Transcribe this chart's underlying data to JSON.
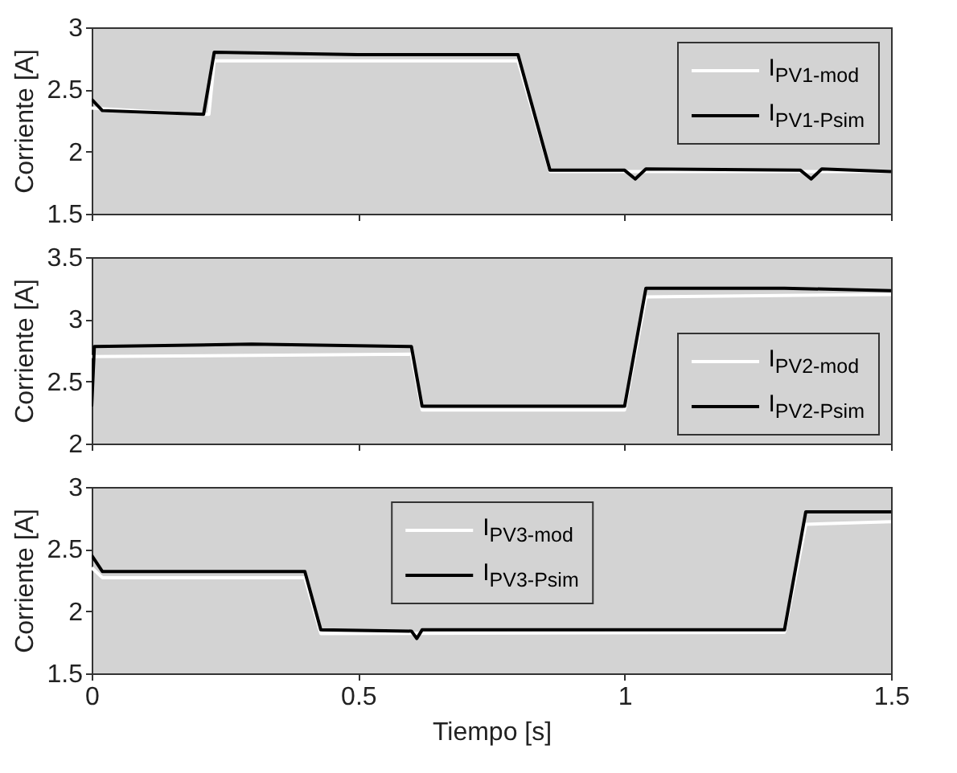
{
  "chart_data": [
    {
      "type": "line",
      "ylabel": "Corriente [A]",
      "xlim": [
        0,
        1.5
      ],
      "xticks": [
        0,
        0.5,
        1,
        1.5
      ],
      "ylim": [
        1.5,
        3
      ],
      "yticks": [
        1.5,
        2,
        2.5,
        3
      ],
      "tick_labels": "y",
      "legend": "top right",
      "series": [
        {
          "name": "I$_{PV1-mod}$",
          "color": "#ffffff",
          "x": [
            0,
            0.2,
            0.22,
            0.23,
            0.8,
            0.86,
            1.5
          ],
          "values": [
            2.35,
            2.3,
            2.3,
            2.73,
            2.73,
            1.84,
            1.84
          ]
        },
        {
          "name": "I$_{PV1-Psim}$",
          "color": "#000000",
          "x": [
            0,
            0.02,
            0.21,
            0.23,
            0.5,
            0.8,
            0.86,
            1.0,
            1.02,
            1.04,
            1.33,
            1.35,
            1.37,
            1.5
          ],
          "values": [
            2.42,
            2.33,
            2.3,
            2.8,
            2.78,
            2.78,
            1.85,
            1.85,
            1.78,
            1.86,
            1.85,
            1.78,
            1.86,
            1.84
          ]
        }
      ]
    },
    {
      "type": "line",
      "ylabel": "Corriente [A]",
      "xlim": [
        0,
        1.5
      ],
      "xticks": [
        0,
        0.5,
        1,
        1.5
      ],
      "ylim": [
        2,
        3.5
      ],
      "yticks": [
        2,
        2.5,
        3,
        3.5
      ],
      "tick_labels": "y",
      "legend": "bottom right",
      "series": [
        {
          "name": "I$_{PV2-mod}$",
          "color": "#ffffff",
          "x": [
            0,
            0.6,
            0.62,
            1.0,
            1.04,
            1.5
          ],
          "values": [
            2.7,
            2.72,
            2.27,
            2.27,
            3.18,
            3.2
          ]
        },
        {
          "name": "I$_{PV2-Psim}$",
          "color": "#000000",
          "x": [
            0,
            0.005,
            0.3,
            0.6,
            0.62,
            1.0,
            1.04,
            1.3,
            1.5
          ],
          "values": [
            2.3,
            2.78,
            2.8,
            2.78,
            2.3,
            2.3,
            3.25,
            3.25,
            3.23
          ]
        }
      ]
    },
    {
      "type": "line",
      "xlabel": "Tiempo [s]",
      "ylabel": "Corriente [A]",
      "xlim": [
        0,
        1.5
      ],
      "xticks": [
        0,
        0.5,
        1,
        1.5
      ],
      "ylim": [
        1.5,
        3
      ],
      "yticks": [
        1.5,
        2,
        2.5,
        3
      ],
      "legend": "top",
      "series": [
        {
          "name": "I$_{PV3-mod}$",
          "color": "#ffffff",
          "x": [
            0,
            0.02,
            0.4,
            0.43,
            1.3,
            1.34,
            1.5
          ],
          "values": [
            2.35,
            2.27,
            2.27,
            1.82,
            1.83,
            2.7,
            2.72
          ]
        },
        {
          "name": "I$_{PV3-Psim}$",
          "color": "#000000",
          "x": [
            0,
            0.02,
            0.4,
            0.43,
            0.6,
            0.61,
            0.62,
            1.3,
            1.34,
            1.5
          ],
          "values": [
            2.45,
            2.32,
            2.32,
            1.85,
            1.84,
            1.78,
            1.85,
            1.85,
            2.8,
            2.8
          ]
        }
      ]
    }
  ]
}
